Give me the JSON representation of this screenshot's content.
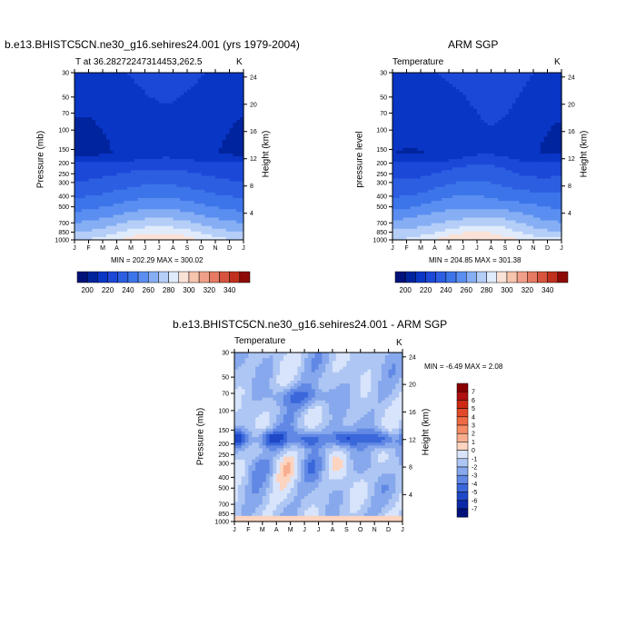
{
  "figure": {
    "top_left_title": "b.e13.BHISTC5CN.ne30_g16.sehires24.001 (yrs 1979-2004)",
    "top_right_title": "ARM SGP",
    "bottom_title": "b.e13.BHISTC5CN.ne30_g16.sehires24.001 - ARM SGP"
  },
  "chart_data": [
    {
      "type": "heatmap",
      "id": "model",
      "left_string": "T at 36.28272247314453,262.5",
      "right_string": "K",
      "ylabel_left": "Pressure (mb)",
      "ylabel_right": "Height (km)",
      "x_tick_labels": [
        "J",
        "F",
        "M",
        "A",
        "M",
        "J",
        "J",
        "A",
        "S",
        "O",
        "N",
        "D",
        "J"
      ],
      "y_pressure_ticks": [
        "30",
        "50",
        "70",
        "100",
        "150",
        "200",
        "250",
        "300",
        "400",
        "500",
        "700",
        "850",
        "1000"
      ],
      "y_pressure_values": [
        30,
        50,
        70,
        100,
        150,
        200,
        250,
        300,
        400,
        500,
        700,
        850,
        1000
      ],
      "y_height_ticks": [
        "24",
        "20",
        "16",
        "12",
        "8",
        "4"
      ],
      "y_height_values": [
        24,
        20,
        16,
        12,
        8,
        4
      ],
      "min_max_text": "MIN = 202.29 MAX = 300.02",
      "colorbar_labels": [
        "200",
        "220",
        "240",
        "260",
        "280",
        "300",
        "320",
        "340"
      ],
      "levels": [
        190,
        200,
        210,
        220,
        230,
        240,
        250,
        260,
        270,
        280,
        290,
        300,
        310,
        320,
        330,
        340,
        350
      ],
      "min": 202.29,
      "max": 300.02
    },
    {
      "type": "heatmap",
      "id": "obs",
      "left_string": "Temperature",
      "right_string": "K",
      "ylabel_left": "pressure level",
      "ylabel_right": "Height (km)",
      "x_tick_labels": [
        "J",
        "F",
        "M",
        "A",
        "M",
        "J",
        "J",
        "A",
        "S",
        "O",
        "N",
        "D",
        "J"
      ],
      "y_pressure_ticks": [
        "30",
        "50",
        "70",
        "100",
        "150",
        "200",
        "250",
        "300",
        "400",
        "500",
        "700",
        "850",
        "1000"
      ],
      "y_pressure_values": [
        30,
        50,
        70,
        100,
        150,
        200,
        250,
        300,
        400,
        500,
        700,
        850,
        1000
      ],
      "y_height_ticks": [
        "24",
        "20",
        "16",
        "12",
        "8",
        "4"
      ],
      "y_height_values": [
        24,
        20,
        16,
        12,
        8,
        4
      ],
      "min_max_text": "MIN = 204.85 MAX = 301.38",
      "colorbar_labels": [
        "200",
        "220",
        "240",
        "260",
        "280",
        "300",
        "320",
        "340"
      ],
      "levels": [
        190,
        200,
        210,
        220,
        230,
        240,
        250,
        260,
        270,
        280,
        290,
        300,
        310,
        320,
        330,
        340,
        350
      ],
      "min": 204.85,
      "max": 301.38
    },
    {
      "type": "heatmap",
      "id": "diff",
      "left_string": "Temperature",
      "right_string": "K",
      "ylabel_left": "Pressure (mb)",
      "ylabel_right": "Height (km)",
      "x_tick_labels": [
        "J",
        "F",
        "M",
        "A",
        "M",
        "J",
        "J",
        "A",
        "S",
        "O",
        "N",
        "D",
        "J"
      ],
      "y_pressure_ticks": [
        "30",
        "50",
        "70",
        "100",
        "150",
        "200",
        "250",
        "300",
        "400",
        "500",
        "700",
        "850",
        "1000"
      ],
      "y_pressure_values": [
        30,
        50,
        70,
        100,
        150,
        200,
        250,
        300,
        400,
        500,
        700,
        850,
        1000
      ],
      "y_height_ticks": [
        "24",
        "20",
        "16",
        "12",
        "8",
        "4"
      ],
      "y_height_values": [
        24,
        20,
        16,
        12,
        8,
        4
      ],
      "min_max_text": "MIN =  -6.49 MAX =   2.08",
      "colorbar_labels": [
        "7",
        "6",
        "5",
        "4",
        "3",
        "2",
        "1",
        "0",
        "-1",
        "-2",
        "-3",
        "-4",
        "-5",
        "-6",
        "-7"
      ],
      "min": -6.49,
      "max": 2.08
    }
  ],
  "colors": {
    "temperature_colormap": [
      "#00127a",
      "#00249e",
      "#0a36c6",
      "#1c48d8",
      "#2c5ee2",
      "#3c74ea",
      "#5a8ef0",
      "#86aef4",
      "#b4cef8",
      "#e0ebfb",
      "#fbe2d6",
      "#f7c4ae",
      "#f0a088",
      "#e67a62",
      "#d8543e",
      "#c0301c",
      "#8e0a06"
    ],
    "difference_colormap": [
      "#8b0000",
      "#b01010",
      "#cc2a14",
      "#e04a28",
      "#ee6a44",
      "#f48c66",
      "#f8ae8e",
      "#fcd4c0",
      "#d8e4fb",
      "#aec6f3",
      "#87a8ec",
      "#6088e4",
      "#3a68da",
      "#1e48c8",
      "#0a2aa8",
      "#00127a"
    ]
  }
}
